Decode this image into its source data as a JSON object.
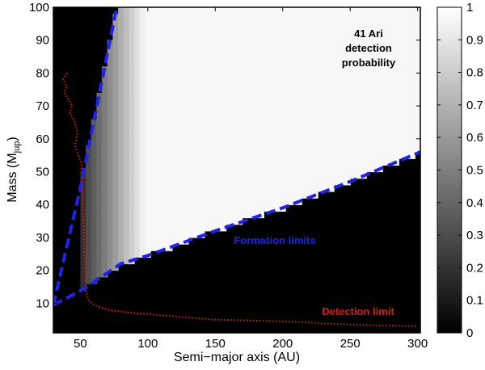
{
  "chart_data": {
    "type": "heatmap",
    "title": "",
    "xlabel": "Semi−major axis (AU)",
    "ylabel": "Mass (M",
    "ylabel_sub": "jup",
    "ylabel_close": ")",
    "xlim": [
      30,
      302
    ],
    "ylim": [
      1,
      100
    ],
    "x_ticks": [
      50,
      100,
      150,
      200,
      250,
      300
    ],
    "y_ticks": [
      10,
      20,
      30,
      40,
      50,
      60,
      70,
      80,
      90,
      100
    ],
    "colorbar": {
      "range": [
        0,
        1
      ],
      "ticks": [
        "0",
        "0.1",
        "0.2",
        "0.3",
        "0.4",
        "0.5",
        "0.6",
        "0.7",
        "0.8",
        "0.9",
        "1"
      ],
      "colormap": "gray"
    },
    "annotations": {
      "target_title": [
        "41 Ari",
        "detection",
        "probability"
      ],
      "formation_label": "Formation limits",
      "detection_label": "Detection limit"
    },
    "colors": {
      "formation": "#1f22ee",
      "detection": "#dd1a10"
    },
    "formation_limits": {
      "lower_line": [
        [
          30,
          9.5
        ],
        [
          52,
          14.2
        ],
        [
          80,
          22
        ],
        [
          100,
          24.5
        ],
        [
          150,
          32
        ],
        [
          200,
          39
        ],
        [
          250,
          47
        ],
        [
          302,
          56
        ]
      ],
      "upper_line": [
        [
          30,
          9.5
        ],
        [
          50,
          45
        ],
        [
          77,
          100
        ]
      ]
    },
    "detection_limit": [
      [
        40,
        80
      ],
      [
        37,
        78
      ],
      [
        40,
        76
      ],
      [
        38,
        74
      ],
      [
        41,
        72
      ],
      [
        44,
        70
      ],
      [
        42,
        68
      ],
      [
        45,
        66
      ],
      [
        48,
        62
      ],
      [
        46,
        58
      ],
      [
        51,
        52
      ],
      [
        52,
        40
      ],
      [
        53,
        25
      ],
      [
        54,
        14
      ],
      [
        56,
        11
      ],
      [
        60,
        9.5
      ],
      [
        70,
        8
      ],
      [
        90,
        7
      ],
      [
        120,
        6
      ],
      [
        150,
        5
      ],
      [
        200,
        4.5
      ],
      [
        250,
        3.5
      ],
      [
        300,
        3
      ]
    ]
  }
}
